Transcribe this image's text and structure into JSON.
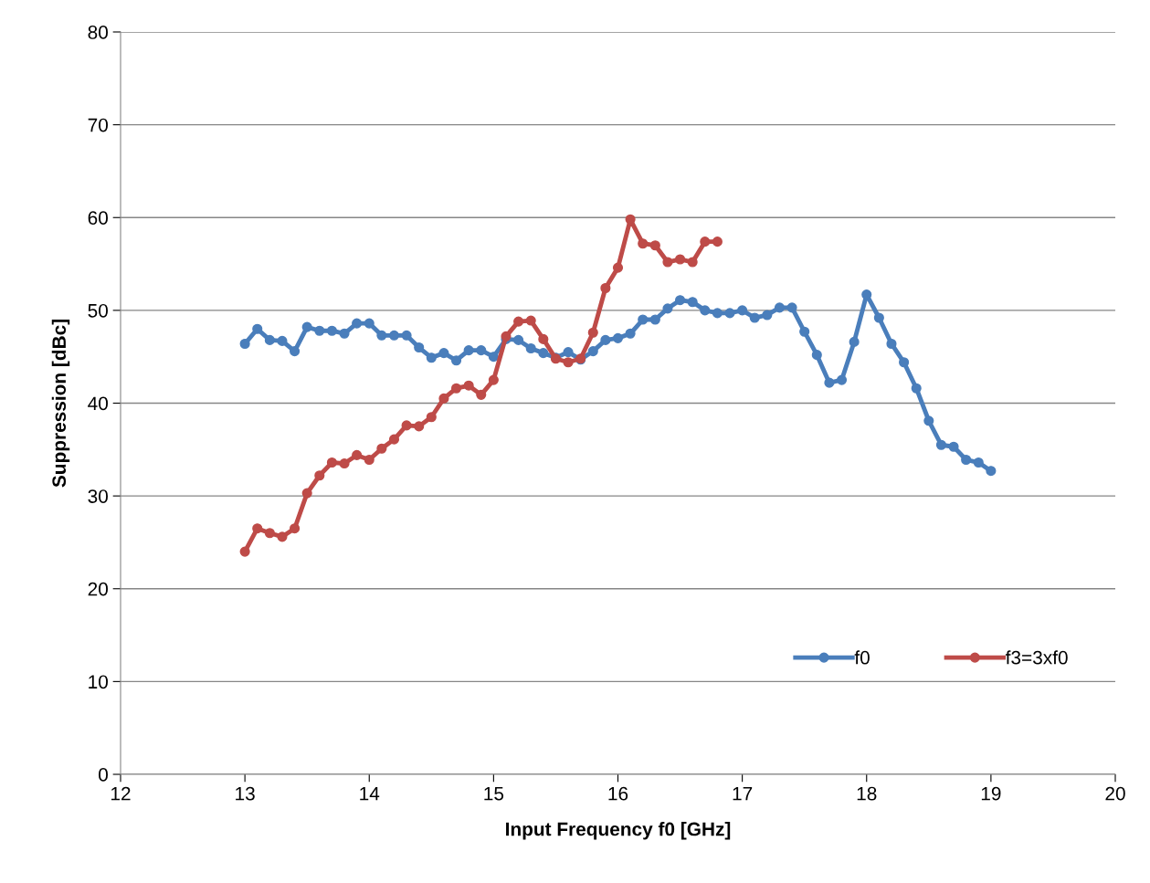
{
  "chart_data": {
    "type": "line",
    "xlabel": "Input Frequency f0 [GHz]",
    "ylabel": "Suppression [dBc]",
    "xlim": [
      12,
      20
    ],
    "xticks": [
      12,
      13,
      14,
      15,
      16,
      17,
      18,
      19,
      20
    ],
    "ylim": [
      0,
      80
    ],
    "yticks": [
      0,
      10,
      20,
      30,
      40,
      50,
      60,
      70,
      80
    ],
    "grid": "y",
    "legend": "bottom right",
    "marker": "circle",
    "line_style": "solid",
    "series": [
      {
        "name": "f0",
        "color": "#4a7ebb",
        "x": [
          13.0,
          13.1,
          13.2,
          13.3,
          13.4,
          13.5,
          13.6,
          13.7,
          13.8,
          13.9,
          14.0,
          14.1,
          14.2,
          14.3,
          14.4,
          14.5,
          14.6,
          14.7,
          14.8,
          14.9,
          15.0,
          15.1,
          15.2,
          15.3,
          15.4,
          15.5,
          15.6,
          15.7,
          15.8,
          15.9,
          16.0,
          16.1,
          16.2,
          16.3,
          16.4,
          16.5,
          16.6,
          16.7,
          16.8,
          16.9,
          17.0,
          17.1,
          17.2,
          17.3,
          17.4,
          17.5,
          17.6,
          17.7,
          17.8,
          17.9,
          18.0,
          18.1,
          18.2,
          18.3,
          18.4,
          18.5,
          18.6,
          18.7,
          18.8,
          18.9,
          19.0
        ],
        "values": [
          46.4,
          48.0,
          46.8,
          46.7,
          45.6,
          48.2,
          47.8,
          47.8,
          47.5,
          48.6,
          48.6,
          47.3,
          47.3,
          47.3,
          46.0,
          44.9,
          45.4,
          44.6,
          45.7,
          45.7,
          45.0,
          46.9,
          46.8,
          45.9,
          45.4,
          44.9,
          45.5,
          44.7,
          45.6,
          46.8,
          47.0,
          47.5,
          49.0,
          49.0,
          50.2,
          51.1,
          50.9,
          50.0,
          49.7,
          49.7,
          50.0,
          49.2,
          49.5,
          50.3,
          50.3,
          47.7,
          45.2,
          42.2,
          42.5,
          46.6,
          51.7,
          49.2,
          46.4,
          44.4,
          41.6,
          38.1,
          35.5,
          35.3,
          33.9,
          33.6,
          32.7
        ]
      },
      {
        "name": "f3=3xf0",
        "color": "#be4b48",
        "x": [
          13.0,
          13.1,
          13.2,
          13.3,
          13.4,
          13.5,
          13.6,
          13.7,
          13.8,
          13.9,
          14.0,
          14.1,
          14.2,
          14.3,
          14.4,
          14.5,
          14.6,
          14.7,
          14.8,
          14.9,
          15.0,
          15.1,
          15.2,
          15.3,
          15.4,
          15.5,
          15.6,
          15.7,
          15.8,
          15.9,
          16.0,
          16.1,
          16.2,
          16.3,
          16.4,
          16.5,
          16.6,
          16.7,
          16.8
        ],
        "values": [
          24.0,
          26.5,
          26.0,
          25.6,
          26.5,
          30.3,
          32.2,
          33.6,
          33.5,
          34.4,
          33.9,
          35.1,
          36.1,
          37.6,
          37.5,
          38.5,
          40.5,
          41.6,
          41.9,
          40.9,
          42.5,
          47.2,
          48.8,
          48.9,
          46.9,
          44.8,
          44.4,
          44.8,
          47.6,
          52.4,
          54.6,
          59.8,
          57.2,
          57.0,
          55.2,
          55.5,
          55.2,
          57.4,
          57.4
        ]
      }
    ]
  }
}
